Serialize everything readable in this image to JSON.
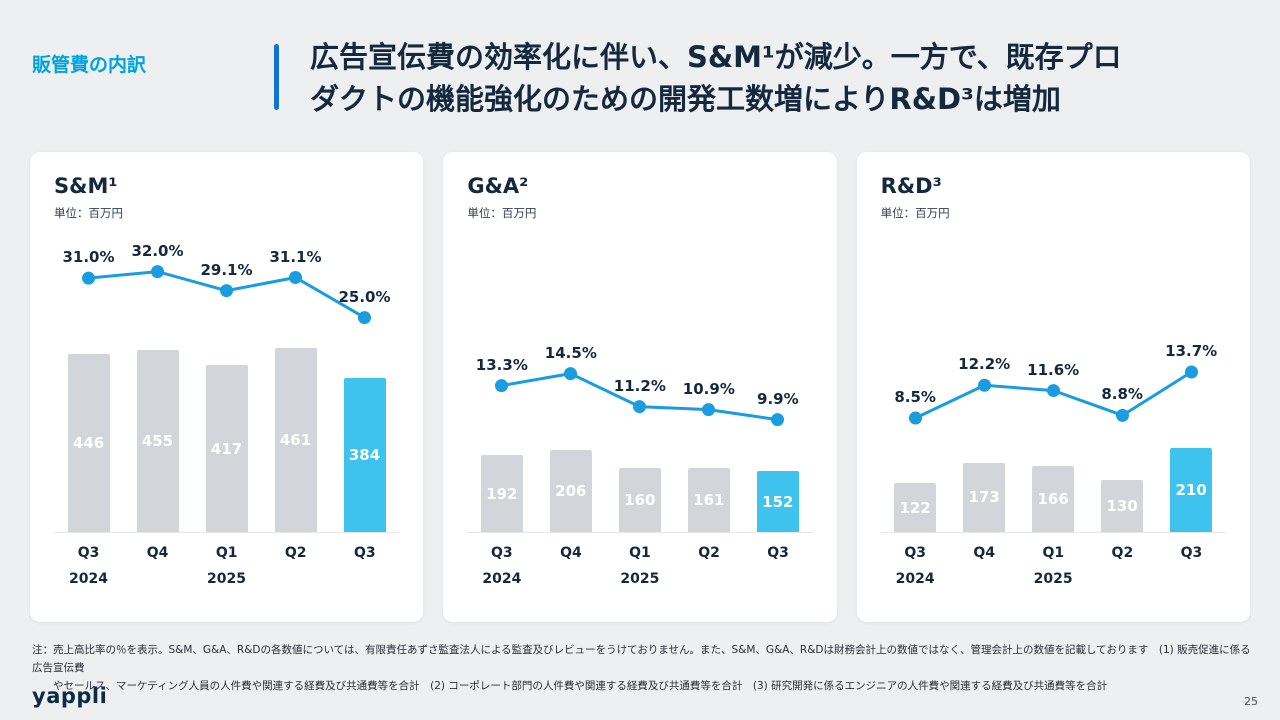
{
  "header": {
    "section_label": "販管費の内訳",
    "title_line1": "広告宣伝費の効率化に伴い、S&M¹が減少。一方で、既存プロ",
    "title_line2": "ダクトの機能強化のための開発工数増によりR&D³は増加"
  },
  "colors": {
    "accent_cyan": "#00a3e0",
    "divider_blue": "#1473d2",
    "bar_gray": "#d2d5da",
    "bar_highlight": "#3ec3ee",
    "line_blue": "#199ce0",
    "navy_text": "#15293e"
  },
  "chart_data": [
    {
      "type": "bar",
      "title": "S&M¹",
      "unit": "単位：百万円",
      "categories": [
        "Q3",
        "Q4",
        "Q1",
        "Q2",
        "Q3"
      ],
      "years": [
        {
          "label": "2024",
          "col": 0
        },
        {
          "label": "2025",
          "col": 2
        }
      ],
      "values": [
        446,
        455,
        417,
        461,
        384
      ],
      "line_pct": [
        31.0,
        32.0,
        29.1,
        31.1,
        25.0
      ],
      "pct_labels": [
        "31.0%",
        "32.0%",
        "29.1%",
        "31.1%",
        "25.0%"
      ],
      "highlight_index": 4,
      "ylabel": "百万円",
      "legend": "none",
      "grid": false
    },
    {
      "type": "bar",
      "title": "G&A²",
      "unit": "単位：百万円",
      "categories": [
        "Q3",
        "Q4",
        "Q1",
        "Q2",
        "Q3"
      ],
      "years": [
        {
          "label": "2024",
          "col": 0
        },
        {
          "label": "2025",
          "col": 2
        }
      ],
      "values": [
        192,
        206,
        160,
        161,
        152
      ],
      "line_pct": [
        13.3,
        14.5,
        11.2,
        10.9,
        9.9
      ],
      "pct_labels": [
        "13.3%",
        "14.5%",
        "11.2%",
        "10.9%",
        "9.9%"
      ],
      "highlight_index": 4,
      "ylabel": "百万円",
      "legend": "none",
      "grid": false
    },
    {
      "type": "bar",
      "title": "R&D³",
      "unit": "単位：百万円",
      "categories": [
        "Q3",
        "Q4",
        "Q1",
        "Q2",
        "Q3"
      ],
      "years": [
        {
          "label": "2024",
          "col": 0
        },
        {
          "label": "2025",
          "col": 2
        }
      ],
      "values": [
        122,
        173,
        166,
        130,
        210
      ],
      "line_pct": [
        8.5,
        12.2,
        11.6,
        8.8,
        13.7
      ],
      "pct_labels": [
        "8.5%",
        "12.2%",
        "11.6%",
        "8.8%",
        "13.7%"
      ],
      "highlight_index": 4,
      "ylabel": "百万円",
      "legend": "none",
      "grid": false
    }
  ],
  "footnote": {
    "line1": "注：売上高比率の％を表示。S&M、G&A、R&Dの各数値については、有限責任あずさ監査法人による監査及びレビューをうけておりません。また、S&M、G&A、R&Dは財務会計上の数値ではなく、管理会計上の数値を記載しております　(1) 販売促進に係る広告宣伝費",
    "line2": "　　やセールス、マーケティング人員の人件費や関連する経費及び共通費等を合計　(2) コーポレート部門の人件費や関連する経費及び共通費等を合計　(3) 研究開発に係るエンジニアの人件費や関連する経費及び共通費等を合計"
  },
  "footer": {
    "logo": "yappli",
    "page": "25"
  }
}
